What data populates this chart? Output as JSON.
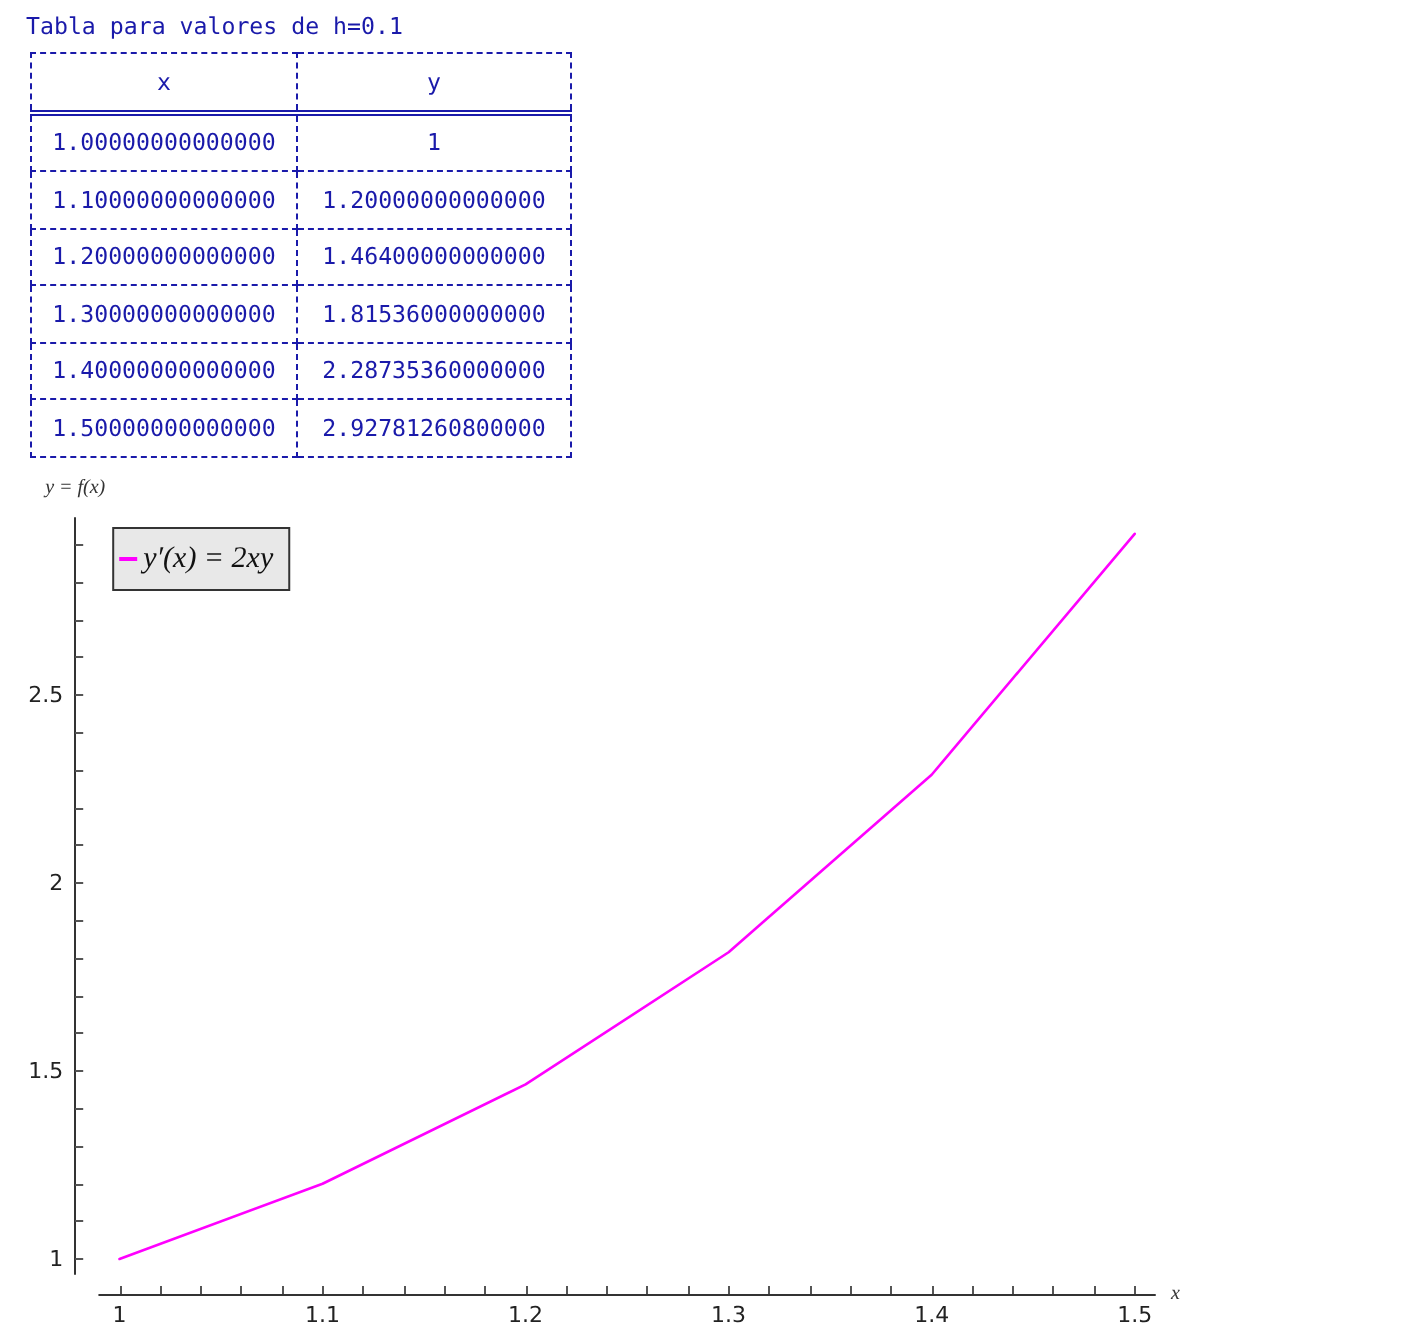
{
  "chart_data": [
    {
      "type": "other",
      "title": "Tabla para valores de h=0.1",
      "xlabel": "x",
      "ylabel": "y",
      "categories": [
        "1.00000000000000",
        "1.10000000000000",
        "1.20000000000000",
        "1.30000000000000",
        "1.40000000000000",
        "1.50000000000000"
      ],
      "value_labels": [
        "1",
        "1.20000000000000",
        "1.46400000000000",
        "1.81536000000000",
        "2.28735360000000",
        "2.92781260800000"
      ]
    },
    {
      "type": "line",
      "x": [
        1,
        1.1,
        1.2,
        1.3,
        1.4,
        1.5
      ],
      "series": [
        {
          "name": "y′(x) = 2xy",
          "color": "#ff00ff",
          "values": [
            1,
            1.2,
            1.464,
            1.81536,
            2.2873536,
            2.927812608
          ]
        }
      ],
      "xlabel": "x",
      "ylabel": "y = f(x)",
      "xlim": [
        0.99,
        1.51
      ],
      "ylim": [
        0.96,
        2.97
      ],
      "xticks": [
        1,
        {
          "value": 1.02,
          "label": null
        },
        {
          "value": 1.04,
          "label": null
        },
        {
          "value": 1.06,
          "label": null
        },
        {
          "value": 1.08,
          "label": null
        },
        1.1,
        {
          "value": 1.12,
          "label": null
        },
        {
          "value": 1.14,
          "label": null
        },
        {
          "value": 1.16,
          "label": null
        },
        {
          "value": 1.18,
          "label": null
        },
        1.2,
        {
          "value": 1.22,
          "label": null
        },
        {
          "value": 1.24,
          "label": null
        },
        {
          "value": 1.26,
          "label": null
        },
        {
          "value": 1.28,
          "label": null
        },
        1.3,
        {
          "value": 1.32,
          "label": null
        },
        {
          "value": 1.34,
          "label": null
        },
        {
          "value": 1.36,
          "label": null
        },
        {
          "value": 1.38,
          "label": null
        },
        1.4,
        {
          "value": 1.42,
          "label": null
        },
        {
          "value": 1.44,
          "label": null
        },
        {
          "value": 1.46,
          "label": null
        },
        {
          "value": 1.48,
          "label": null
        },
        1.5
      ],
      "yticks": [
        1,
        {
          "value": 1.1,
          "label": null
        },
        {
          "value": 1.2,
          "label": null
        },
        {
          "value": 1.3,
          "label": null
        },
        {
          "value": 1.4,
          "label": null
        },
        1.5,
        {
          "value": 1.6,
          "label": null
        },
        {
          "value": 1.7,
          "label": null
        },
        {
          "value": 1.8,
          "label": null
        },
        {
          "value": 1.9,
          "label": null
        },
        2,
        {
          "value": 2.1,
          "label": null
        },
        {
          "value": 2.2,
          "label": null
        },
        {
          "value": 2.3,
          "label": null
        },
        {
          "value": 2.4,
          "label": null
        },
        2.5,
        {
          "value": 2.6,
          "label": null
        },
        {
          "value": 2.7,
          "label": null
        },
        {
          "value": 2.8,
          "label": null
        },
        {
          "value": 2.9,
          "label": null
        }
      ],
      "legend": "top left"
    }
  ]
}
